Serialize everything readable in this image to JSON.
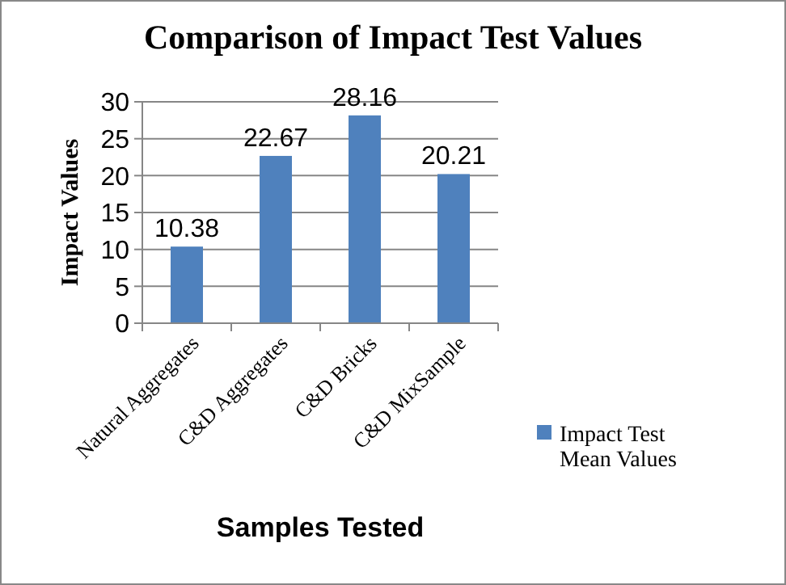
{
  "chart_data": {
    "type": "bar",
    "title": "Comparison of Impact Test Values",
    "xlabel": "Samples Tested",
    "ylabel": "Impact Values",
    "categories": [
      "Natural Aggregates",
      "C&D Aggregates",
      "C&D Bricks",
      "C&D MixSample"
    ],
    "series": [
      {
        "name": "Impact Test Mean Values",
        "color": "#4f81bd",
        "values": [
          10.38,
          22.67,
          28.16,
          20.21
        ]
      }
    ],
    "ylim": [
      0,
      30
    ],
    "yticks": [
      0,
      5,
      10,
      15,
      20,
      25,
      30
    ],
    "grid": "y",
    "legend": "right",
    "data_labels": true
  }
}
